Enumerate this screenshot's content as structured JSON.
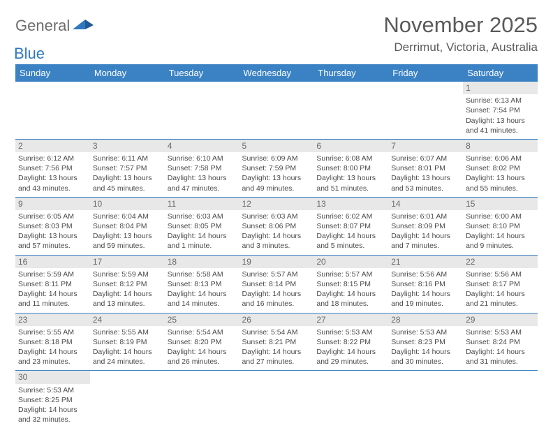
{
  "logo": {
    "grey": "General",
    "blue": "Blue"
  },
  "title": "November 2025",
  "location": "Derrimut, Victoria, Australia",
  "colors": {
    "header_bg": "#3b82c4",
    "header_fg": "#ffffff",
    "daynum_bg": "#e8e8e8",
    "text": "#4a4a4a",
    "rule": "#3b82c4"
  },
  "daysOfWeek": [
    "Sunday",
    "Monday",
    "Tuesday",
    "Wednesday",
    "Thursday",
    "Friday",
    "Saturday"
  ],
  "weeks": [
    [
      null,
      null,
      null,
      null,
      null,
      null,
      {
        "n": "1",
        "sr": "Sunrise: 6:13 AM",
        "ss": "Sunset: 7:54 PM",
        "dl": "Daylight: 13 hours and 41 minutes."
      }
    ],
    [
      {
        "n": "2",
        "sr": "Sunrise: 6:12 AM",
        "ss": "Sunset: 7:56 PM",
        "dl": "Daylight: 13 hours and 43 minutes."
      },
      {
        "n": "3",
        "sr": "Sunrise: 6:11 AM",
        "ss": "Sunset: 7:57 PM",
        "dl": "Daylight: 13 hours and 45 minutes."
      },
      {
        "n": "4",
        "sr": "Sunrise: 6:10 AM",
        "ss": "Sunset: 7:58 PM",
        "dl": "Daylight: 13 hours and 47 minutes."
      },
      {
        "n": "5",
        "sr": "Sunrise: 6:09 AM",
        "ss": "Sunset: 7:59 PM",
        "dl": "Daylight: 13 hours and 49 minutes."
      },
      {
        "n": "6",
        "sr": "Sunrise: 6:08 AM",
        "ss": "Sunset: 8:00 PM",
        "dl": "Daylight: 13 hours and 51 minutes."
      },
      {
        "n": "7",
        "sr": "Sunrise: 6:07 AM",
        "ss": "Sunset: 8:01 PM",
        "dl": "Daylight: 13 hours and 53 minutes."
      },
      {
        "n": "8",
        "sr": "Sunrise: 6:06 AM",
        "ss": "Sunset: 8:02 PM",
        "dl": "Daylight: 13 hours and 55 minutes."
      }
    ],
    [
      {
        "n": "9",
        "sr": "Sunrise: 6:05 AM",
        "ss": "Sunset: 8:03 PM",
        "dl": "Daylight: 13 hours and 57 minutes."
      },
      {
        "n": "10",
        "sr": "Sunrise: 6:04 AM",
        "ss": "Sunset: 8:04 PM",
        "dl": "Daylight: 13 hours and 59 minutes."
      },
      {
        "n": "11",
        "sr": "Sunrise: 6:03 AM",
        "ss": "Sunset: 8:05 PM",
        "dl": "Daylight: 14 hours and 1 minute."
      },
      {
        "n": "12",
        "sr": "Sunrise: 6:03 AM",
        "ss": "Sunset: 8:06 PM",
        "dl": "Daylight: 14 hours and 3 minutes."
      },
      {
        "n": "13",
        "sr": "Sunrise: 6:02 AM",
        "ss": "Sunset: 8:07 PM",
        "dl": "Daylight: 14 hours and 5 minutes."
      },
      {
        "n": "14",
        "sr": "Sunrise: 6:01 AM",
        "ss": "Sunset: 8:09 PM",
        "dl": "Daylight: 14 hours and 7 minutes."
      },
      {
        "n": "15",
        "sr": "Sunrise: 6:00 AM",
        "ss": "Sunset: 8:10 PM",
        "dl": "Daylight: 14 hours and 9 minutes."
      }
    ],
    [
      {
        "n": "16",
        "sr": "Sunrise: 5:59 AM",
        "ss": "Sunset: 8:11 PM",
        "dl": "Daylight: 14 hours and 11 minutes."
      },
      {
        "n": "17",
        "sr": "Sunrise: 5:59 AM",
        "ss": "Sunset: 8:12 PM",
        "dl": "Daylight: 14 hours and 13 minutes."
      },
      {
        "n": "18",
        "sr": "Sunrise: 5:58 AM",
        "ss": "Sunset: 8:13 PM",
        "dl": "Daylight: 14 hours and 14 minutes."
      },
      {
        "n": "19",
        "sr": "Sunrise: 5:57 AM",
        "ss": "Sunset: 8:14 PM",
        "dl": "Daylight: 14 hours and 16 minutes."
      },
      {
        "n": "20",
        "sr": "Sunrise: 5:57 AM",
        "ss": "Sunset: 8:15 PM",
        "dl": "Daylight: 14 hours and 18 minutes."
      },
      {
        "n": "21",
        "sr": "Sunrise: 5:56 AM",
        "ss": "Sunset: 8:16 PM",
        "dl": "Daylight: 14 hours and 19 minutes."
      },
      {
        "n": "22",
        "sr": "Sunrise: 5:56 AM",
        "ss": "Sunset: 8:17 PM",
        "dl": "Daylight: 14 hours and 21 minutes."
      }
    ],
    [
      {
        "n": "23",
        "sr": "Sunrise: 5:55 AM",
        "ss": "Sunset: 8:18 PM",
        "dl": "Daylight: 14 hours and 23 minutes."
      },
      {
        "n": "24",
        "sr": "Sunrise: 5:55 AM",
        "ss": "Sunset: 8:19 PM",
        "dl": "Daylight: 14 hours and 24 minutes."
      },
      {
        "n": "25",
        "sr": "Sunrise: 5:54 AM",
        "ss": "Sunset: 8:20 PM",
        "dl": "Daylight: 14 hours and 26 minutes."
      },
      {
        "n": "26",
        "sr": "Sunrise: 5:54 AM",
        "ss": "Sunset: 8:21 PM",
        "dl": "Daylight: 14 hours and 27 minutes."
      },
      {
        "n": "27",
        "sr": "Sunrise: 5:53 AM",
        "ss": "Sunset: 8:22 PM",
        "dl": "Daylight: 14 hours and 29 minutes."
      },
      {
        "n": "28",
        "sr": "Sunrise: 5:53 AM",
        "ss": "Sunset: 8:23 PM",
        "dl": "Daylight: 14 hours and 30 minutes."
      },
      {
        "n": "29",
        "sr": "Sunrise: 5:53 AM",
        "ss": "Sunset: 8:24 PM",
        "dl": "Daylight: 14 hours and 31 minutes."
      }
    ],
    [
      {
        "n": "30",
        "sr": "Sunrise: 5:53 AM",
        "ss": "Sunset: 8:25 PM",
        "dl": "Daylight: 14 hours and 32 minutes."
      },
      null,
      null,
      null,
      null,
      null,
      null
    ]
  ]
}
